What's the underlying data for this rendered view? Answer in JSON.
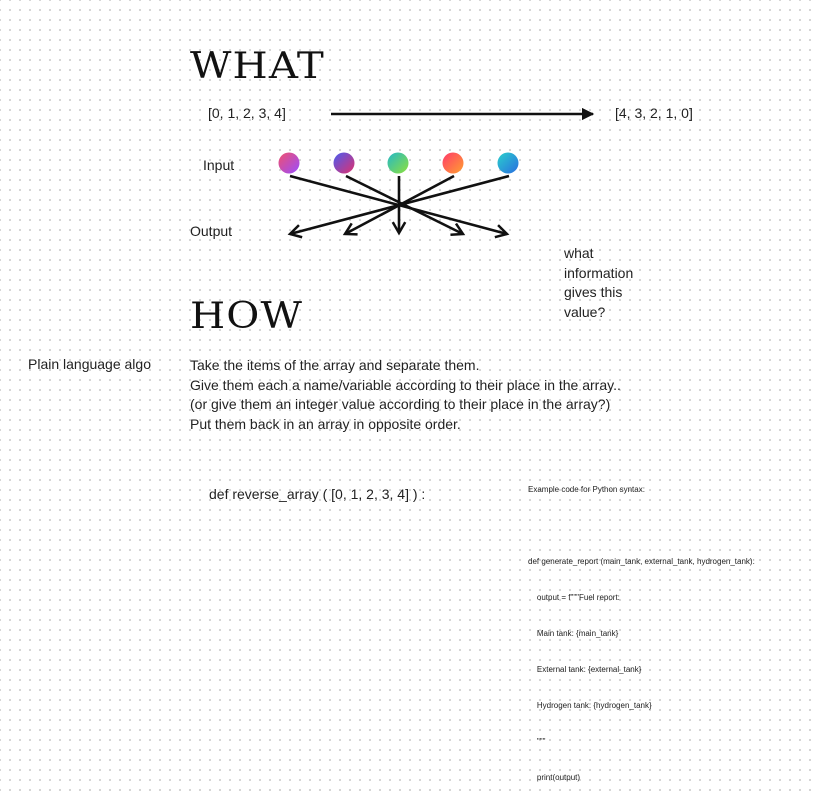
{
  "what_heading": "WHAT",
  "input_array": "[0, 1, 2, 3, 4]",
  "output_array": "[4, 3, 2, 1, 0]",
  "input_label": "Input",
  "output_label": "Output",
  "question_lines": [
    "what",
    "information",
    "gives this",
    "value?"
  ],
  "how_heading": "HOW",
  "plain_language_label": "Plain language algo",
  "algo_steps": [
    "Take the items of the array and separate them.",
    "Give them each a name/variable according to their place in the array..",
    "(or give them an integer value according to their place in the array?)",
    "Put them back in an array in opposite order."
  ],
  "function_call": "def reverse_array ( [0, 1, 2, 3, 4] ) :",
  "example_code": {
    "title": "Example code for Python syntax:",
    "lines": [
      "def generate_report (main_tank, external_tank, hydrogen_tank):",
      "    output = f\"\"\"Fuel report:",
      "    Main tank: {main_tank}",
      "    External tank: {external_tank}",
      "    Hydrogen tank: {hydrogen_tank}",
      "    \"\"\"",
      "    print(output)"
    ]
  },
  "dot_gradients": [
    [
      "#f0506e",
      "#9a4dff"
    ],
    [
      "#4a5cf0",
      "#e0306e"
    ],
    [
      "#24b8c8",
      "#8ee03a"
    ],
    [
      "#ff3a6a",
      "#ffa030"
    ],
    [
      "#2ad0cc",
      "#2a6ee0"
    ]
  ]
}
